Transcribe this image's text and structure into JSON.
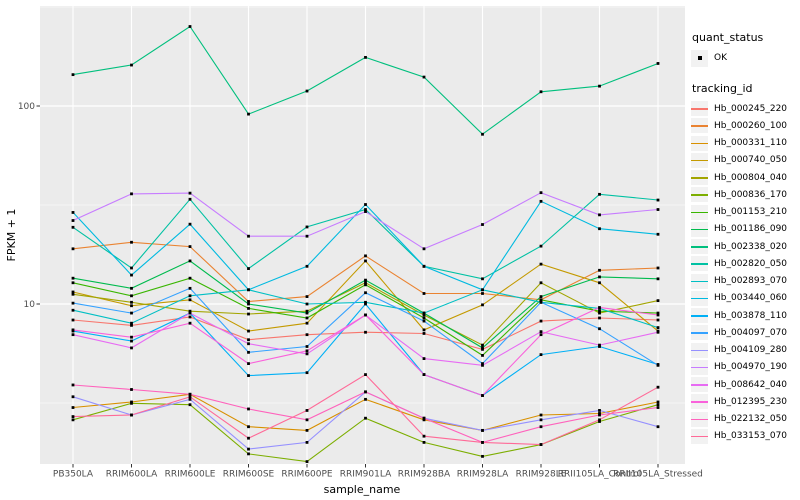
{
  "figure": {
    "background": "#FFFFFF",
    "panel_background": "#EBEBEB",
    "gridline_color": "#FFFFFF",
    "tick_color": "#333333",
    "tick_label_color": "#4D4D4D",
    "point_color": "#000000",
    "point_shape": "square"
  },
  "legend": {
    "quant_status": {
      "title": "quant_status",
      "items": [
        {
          "label": "OK",
          "glyph": "black-point"
        }
      ]
    },
    "tracking": {
      "title": "tracking_id"
    }
  },
  "chart_data": {
    "type": "line",
    "title": "",
    "xlabel": "sample_name",
    "ylabel": "FPKM + 1",
    "y_scale": "log10",
    "ylim": [
      1.56,
      320
    ],
    "y_ticks": [
      100,
      10
    ],
    "y_tick_labels": [
      "100",
      "10"
    ],
    "y_minor_breaks": [
      3.162,
      31.62,
      316.2
    ],
    "grid": "major-and-minor",
    "legend_position": "right",
    "markers": "black-squares",
    "categories": [
      "PB350LA",
      "RRIM600LA",
      "RRIM600LE",
      "RRIM600SE",
      "RRIM600PE",
      "RRIM901LA",
      "RRIM928BA",
      "RRIM928LA",
      "RRIM928LE",
      "RRII105LA_Control",
      "RRII105LA_Stressed"
    ],
    "series": [
      {
        "name": "Hb_000245_220",
        "color": "#F8766D",
        "values": [
          8.3,
          7.8,
          8.6,
          6.6,
          7.0,
          7.2,
          7.1,
          5.9,
          8.2,
          8.5,
          8.3
        ]
      },
      {
        "name": "Hb_000260_100",
        "color": "#EA8331",
        "values": [
          19.0,
          20.5,
          19.5,
          10.3,
          10.9,
          17.5,
          11.3,
          11.3,
          10.5,
          14.8,
          15.2
        ]
      },
      {
        "name": "Hb_000331_110",
        "color": "#D89000",
        "values": [
          3.0,
          3.2,
          3.5,
          2.4,
          2.3,
          3.3,
          2.6,
          2.3,
          2.75,
          2.8,
          3.2
        ]
      },
      {
        "name": "Hb_000740_050",
        "color": "#C49A00",
        "values": [
          11.5,
          9.8,
          10.5,
          7.3,
          8.0,
          16.5,
          7.4,
          9.9,
          15.9,
          12.8,
          7.3
        ]
      },
      {
        "name": "Hb_000804_040",
        "color": "#A3A500",
        "values": [
          11.2,
          10.2,
          9.2,
          8.9,
          9.2,
          12.8,
          8.8,
          6.2,
          12.8,
          9.0,
          10.4
        ]
      },
      {
        "name": "Hb_000836_170",
        "color": "#7CAE00",
        "values": [
          2.6,
          3.15,
          3.1,
          1.75,
          1.6,
          2.65,
          2.0,
          1.7,
          1.95,
          2.55,
          3.1
        ]
      },
      {
        "name": "Hb_001153_210",
        "color": "#39B600",
        "values": [
          12.8,
          11.0,
          13.5,
          9.5,
          8.5,
          12.5,
          8.5,
          5.5,
          10.5,
          9.2,
          9.0
        ]
      },
      {
        "name": "Hb_001186_090",
        "color": "#00BB4E",
        "values": [
          13.5,
          12.0,
          16.5,
          10.0,
          9.0,
          13.2,
          9.0,
          6.0,
          10.9,
          13.7,
          13.4
        ]
      },
      {
        "name": "Hb_002338_020",
        "color": "#00BF7D",
        "values": [
          144,
          161,
          252,
          91,
          119,
          176,
          140,
          72,
          118,
          126,
          164
        ]
      },
      {
        "name": "Hb_002820_050",
        "color": "#00C1A3",
        "values": [
          24.4,
          15.2,
          33.8,
          15.1,
          24.5,
          30.0,
          15.5,
          13.4,
          19.6,
          35.8,
          33.5
        ]
      },
      {
        "name": "Hb_002893_070",
        "color": "#00BFC4",
        "values": [
          9.3,
          8.0,
          11.0,
          11.8,
          10.0,
          10.2,
          9.0,
          11.8,
          10.2,
          9.5,
          7.6
        ]
      },
      {
        "name": "Hb_003440_060",
        "color": "#00BAE0",
        "values": [
          29.0,
          14.0,
          25.3,
          11.8,
          15.5,
          31.8,
          15.5,
          11.8,
          33.0,
          24.0,
          22.5
        ]
      },
      {
        "name": "Hb_003878_110",
        "color": "#00B0F6",
        "values": [
          7.3,
          6.5,
          9.0,
          4.35,
          4.5,
          10.0,
          4.4,
          3.45,
          5.55,
          6.1,
          4.95
        ]
      },
      {
        "name": "Hb_004097_070",
        "color": "#35A2FF",
        "values": [
          10.1,
          9.0,
          12.0,
          5.7,
          6.1,
          11.4,
          8.2,
          5.0,
          10.2,
          7.5,
          4.9
        ]
      },
      {
        "name": "Hb_004109_280",
        "color": "#9590FF",
        "values": [
          3.4,
          2.75,
          3.3,
          1.85,
          2.0,
          3.6,
          2.65,
          2.3,
          2.6,
          2.9,
          2.4
        ]
      },
      {
        "name": "Hb_004970_190",
        "color": "#C77CFF",
        "values": [
          26.4,
          36.0,
          36.3,
          22.0,
          22.0,
          29.3,
          19.0,
          25.2,
          36.5,
          28.2,
          30.0
        ]
      },
      {
        "name": "Hb_008642_040",
        "color": "#E76BF3",
        "values": [
          7.0,
          6.0,
          9.0,
          6.3,
          5.6,
          8.8,
          5.3,
          4.9,
          7.25,
          6.2,
          7.2
        ]
      },
      {
        "name": "Hb_012395_230",
        "color": "#FA62DB",
        "values": [
          7.4,
          6.8,
          8.0,
          5.0,
          5.8,
          8.8,
          4.4,
          3.45,
          7.0,
          9.6,
          8.8
        ]
      },
      {
        "name": "Hb_022132_050",
        "color": "#FF62BC",
        "values": [
          3.9,
          3.7,
          3.5,
          2.95,
          2.6,
          3.6,
          2.65,
          2.0,
          2.4,
          2.75,
          3.0
        ]
      },
      {
        "name": "Hb_033153_070",
        "color": "#FF6A98",
        "values": [
          2.7,
          2.75,
          3.4,
          2.1,
          2.9,
          4.4,
          2.15,
          2.0,
          1.95,
          2.6,
          3.8
        ]
      }
    ]
  }
}
